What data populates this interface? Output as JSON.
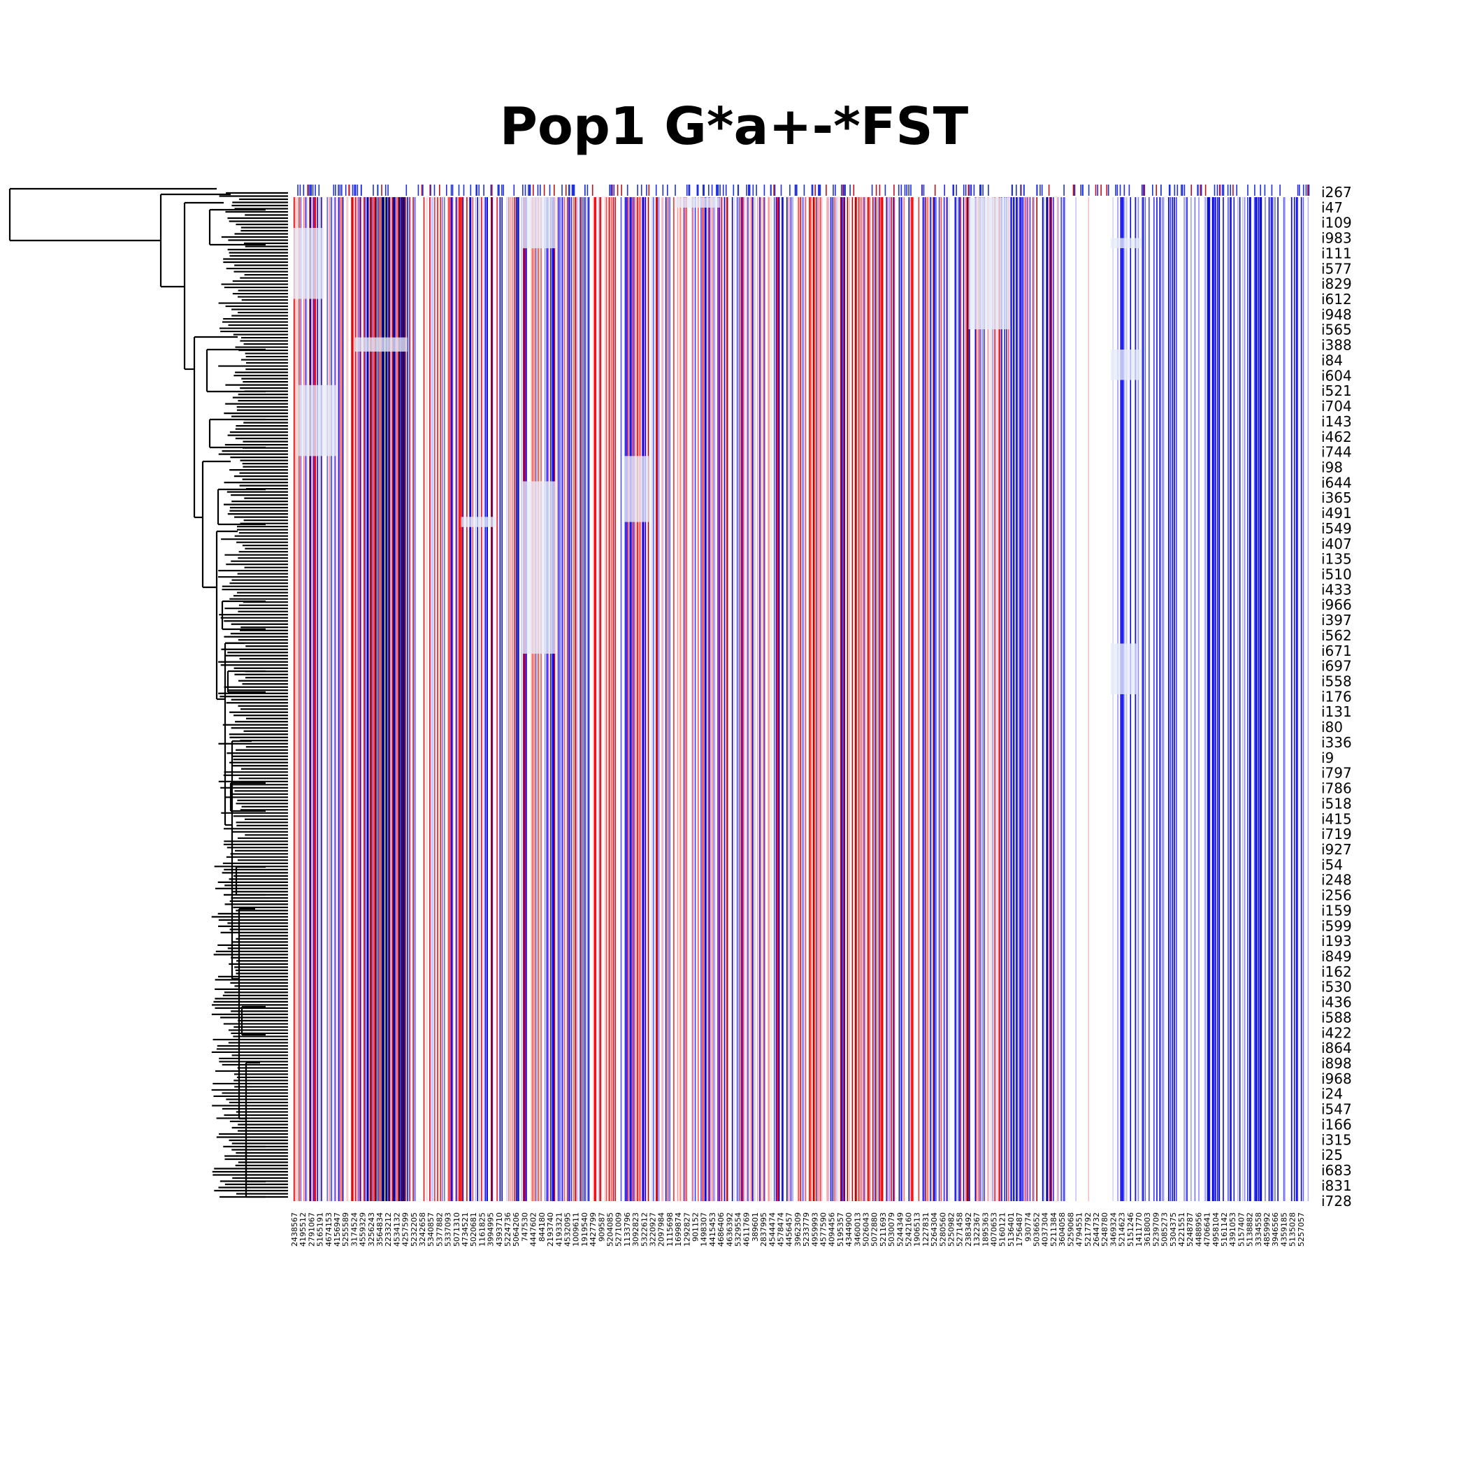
{
  "chart_data": {
    "type": "heatmap",
    "title": "Pop1 G*a+-*FST",
    "xlabel": "",
    "ylabel": "",
    "row_labels": [
      "i267",
      "i47",
      "i109",
      "i983",
      "i111",
      "i577",
      "i829",
      "i612",
      "i948",
      "i565",
      "i388",
      "i84",
      "i604",
      "i521",
      "i704",
      "i143",
      "i462",
      "i744",
      "i98",
      "i644",
      "i365",
      "i491",
      "i549",
      "i407",
      "i135",
      "i510",
      "i433",
      "i966",
      "i397",
      "i562",
      "i671",
      "i697",
      "i558",
      "i176",
      "i131",
      "i80",
      "i336",
      "i9",
      "i797",
      "i786",
      "i518",
      "i415",
      "i719",
      "i927",
      "i54",
      "i248",
      "i256",
      "i159",
      "i599",
      "i193",
      "i849",
      "i162",
      "i530",
      "i436",
      "i588",
      "i422",
      "i864",
      "i898",
      "i968",
      "i24",
      "i547",
      "i166",
      "i315",
      "i25",
      "i683",
      "i831",
      "i728"
    ],
    "column_labels": [
      "2438567",
      "4195512",
      "2791067",
      "5165191",
      "4674153",
      "4156947",
      "5255589",
      "3174524",
      "4559329",
      "3256243",
      "3564834",
      "2233212",
      "4534132",
      "4257599",
      "5232205",
      "3242658",
      "5340857",
      "5377882",
      "5337093",
      "5071310",
      "4734521",
      "5020681",
      "1161825",
      "3994995",
      "4393710",
      "5224736",
      "5064206",
      "747530",
      "4447602",
      "844180",
      "2193740",
      "4193321",
      "4532095",
      "1009611",
      "1919540",
      "4427799",
      "909587",
      "5204085",
      "5271009",
      "1133796",
      "3092823",
      "5322612",
      "3220927",
      "2097984",
      "1115698",
      "1699874",
      "1292827",
      "901152",
      "1498307",
      "4415453",
      "4686406",
      "4636392",
      "5329554",
      "4611769",
      "389601",
      "2837995",
      "4544474",
      "4578474",
      "4456457",
      "3962309",
      "5233779",
      "4959993",
      "4577590",
      "4094456",
      "5195357",
      "4344900",
      "3460013",
      "5026043",
      "5072880",
      "5211693",
      "5030079",
      "5244349",
      "5242160",
      "1906513",
      "1227831",
      "5264304",
      "5280560",
      "5250982",
      "5271458",
      "2383492",
      "1322367",
      "1895363",
      "4070653",
      "5160121",
      "5136401",
      "1756487",
      "930774",
      "5036652",
      "4037304",
      "5211384",
      "3604058",
      "5259068",
      "4794551",
      "5217792",
      "2644732",
      "5248780",
      "3469324",
      "5214623",
      "5151246",
      "1411770",
      "3618003",
      "5239709",
      "5085273",
      "5304375",
      "4221551",
      "5248787",
      "4488956",
      "4706641",
      "4958104",
      "5161142",
      "4391053",
      "5157407",
      "5138882",
      "3334558",
      "4859992",
      "3946566",
      "4359185",
      "5135028",
      "5257057"
    ],
    "value_range": [
      -1,
      1
    ],
    "colormap": "seismic",
    "colors": {
      "negative": "#0000ff",
      "zero": "#ffffff",
      "positive": "#ff0000",
      "dark_positive": "#8b0000",
      "dark_negative": "#00008b"
    },
    "dendrogram": "left",
    "grid": false,
    "legend": "none"
  }
}
